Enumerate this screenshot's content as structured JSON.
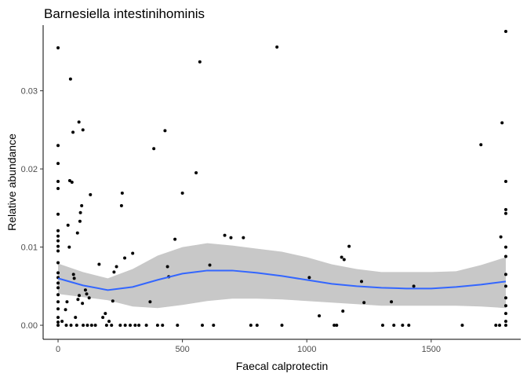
{
  "chart_data": {
    "type": "scatter",
    "title": "Barnesiella intestinihominis",
    "xlabel": "Faecal calprotectin",
    "ylabel": "Relative abundance",
    "xlim": [
      -60,
      1860
    ],
    "ylim": [
      -0.0018,
      0.0384
    ],
    "x_ticks": [
      0,
      500,
      1000,
      1500
    ],
    "x_tick_labels": [
      "0",
      "500",
      "1000",
      "1500"
    ],
    "y_ticks": [
      0,
      0.01,
      0.02,
      0.03
    ],
    "y_tick_labels": [
      "0.00",
      "0.01",
      "0.02",
      "0.03"
    ],
    "grid": false,
    "legend": "none",
    "colors": {
      "points": "#000000",
      "smooth_line": "#3366FF",
      "ribbon": "#C8C8C8"
    },
    "points": [
      [
        0,
        0.0355
      ],
      [
        0,
        0.023
      ],
      [
        0,
        0.0207
      ],
      [
        0,
        0.0184
      ],
      [
        0,
        0.0175
      ],
      [
        0,
        0.0142
      ],
      [
        0,
        0.0121
      ],
      [
        0,
        0.0114
      ],
      [
        0,
        0.0108
      ],
      [
        0,
        0.0101
      ],
      [
        0,
        0.0095
      ],
      [
        0,
        0.008
      ],
      [
        0,
        0.0067
      ],
      [
        0,
        0.0061
      ],
      [
        0,
        0.0054
      ],
      [
        0,
        0.0048
      ],
      [
        0,
        0.0039
      ],
      [
        0,
        0.003
      ],
      [
        0,
        0.0021
      ],
      [
        0,
        0.001
      ],
      [
        0,
        0.0004
      ],
      [
        0,
        0.0
      ],
      [
        16,
        0.0005
      ],
      [
        30,
        0.002
      ],
      [
        33,
        0.0
      ],
      [
        36,
        0.003
      ],
      [
        40,
        0.0128
      ],
      [
        45,
        0.01
      ],
      [
        47,
        0.0185
      ],
      [
        50,
        0.0315
      ],
      [
        52,
        0.0
      ],
      [
        56,
        0.0183
      ],
      [
        60,
        0.0247
      ],
      [
        62,
        0.0065
      ],
      [
        65,
        0.006
      ],
      [
        70,
        0.001
      ],
      [
        75,
        0.0
      ],
      [
        78,
        0.0118
      ],
      [
        80,
        0.0033
      ],
      [
        84,
        0.026
      ],
      [
        85,
        0.0038
      ],
      [
        88,
        0.0133
      ],
      [
        90,
        0.0144
      ],
      [
        95,
        0.0153
      ],
      [
        98,
        0.0028
      ],
      [
        100,
        0.025
      ],
      [
        101,
        0.0
      ],
      [
        110,
        0.0045
      ],
      [
        115,
        0.004
      ],
      [
        118,
        0.0
      ],
      [
        125,
        0.0035
      ],
      [
        130,
        0.0167
      ],
      [
        135,
        0.0
      ],
      [
        150,
        0.0
      ],
      [
        165,
        0.0078
      ],
      [
        180,
        0.001
      ],
      [
        190,
        0.0015
      ],
      [
        195,
        0.0
      ],
      [
        205,
        0.0005
      ],
      [
        215,
        0.0
      ],
      [
        220,
        0.0031
      ],
      [
        225,
        0.0068
      ],
      [
        235,
        0.0075
      ],
      [
        250,
        0.0
      ],
      [
        255,
        0.0153
      ],
      [
        258,
        0.0169
      ],
      [
        268,
        0.0086
      ],
      [
        270,
        0.0
      ],
      [
        290,
        0.0
      ],
      [
        300,
        0.0092
      ],
      [
        310,
        0.0
      ],
      [
        325,
        0.0
      ],
      [
        355,
        0.0
      ],
      [
        370,
        0.003
      ],
      [
        385,
        0.0226
      ],
      [
        400,
        0.0
      ],
      [
        420,
        0.0
      ],
      [
        430,
        0.0249
      ],
      [
        440,
        0.0075
      ],
      [
        445,
        0.0062
      ],
      [
        470,
        0.011
      ],
      [
        480,
        0.0
      ],
      [
        500,
        0.0169
      ],
      [
        555,
        0.0195
      ],
      [
        570,
        0.0337
      ],
      [
        580,
        0.0
      ],
      [
        610,
        0.0077
      ],
      [
        625,
        0.0
      ],
      [
        670,
        0.0115
      ],
      [
        695,
        0.0112
      ],
      [
        745,
        0.0112
      ],
      [
        775,
        0.0
      ],
      [
        800,
        0.0
      ],
      [
        880,
        0.0356
      ],
      [
        900,
        0.0
      ],
      [
        1010,
        0.0061
      ],
      [
        1050,
        0.0012
      ],
      [
        1110,
        0.0
      ],
      [
        1120,
        0.0
      ],
      [
        1140,
        0.0087
      ],
      [
        1145,
        0.0018
      ],
      [
        1150,
        0.0084
      ],
      [
        1170,
        0.0101
      ],
      [
        1220,
        0.0056
      ],
      [
        1230,
        0.0029
      ],
      [
        1305,
        0.0
      ],
      [
        1340,
        0.003
      ],
      [
        1350,
        0.0
      ],
      [
        1385,
        0.0
      ],
      [
        1410,
        0.0
      ],
      [
        1430,
        0.005
      ],
      [
        1625,
        0.0
      ],
      [
        1700,
        0.0231
      ],
      [
        1760,
        0.0
      ],
      [
        1775,
        0.0
      ],
      [
        1780,
        0.0113
      ],
      [
        1785,
        0.0259
      ],
      [
        1800,
        0.0376
      ],
      [
        1800,
        0.0184
      ],
      [
        1800,
        0.0148
      ],
      [
        1800,
        0.0143
      ],
      [
        1800,
        0.01
      ],
      [
        1800,
        0.0088
      ],
      [
        1800,
        0.0065
      ],
      [
        1800,
        0.005
      ],
      [
        1800,
        0.0035
      ],
      [
        1800,
        0.0025
      ],
      [
        1800,
        0.0015
      ],
      [
        1800,
        0.0005
      ],
      [
        1800,
        0.0
      ]
    ],
    "smooth": {
      "x": [
        0,
        100,
        200,
        300,
        400,
        500,
        600,
        700,
        800,
        900,
        1000,
        1100,
        1200,
        1300,
        1400,
        1500,
        1600,
        1700,
        1800
      ],
      "y": [
        0.006,
        0.0051,
        0.0045,
        0.0049,
        0.0058,
        0.0066,
        0.007,
        0.007,
        0.0067,
        0.0063,
        0.0058,
        0.0053,
        0.005,
        0.0048,
        0.0047,
        0.0047,
        0.0049,
        0.0052,
        0.0056
      ],
      "lower": [
        0.004,
        0.0036,
        0.0032,
        0.0024,
        0.0022,
        0.0026,
        0.0031,
        0.0034,
        0.0034,
        0.0033,
        0.0031,
        0.0029,
        0.0027,
        0.0025,
        0.0025,
        0.0025,
        0.0025,
        0.0024,
        0.0022
      ],
      "upper": [
        0.0079,
        0.0068,
        0.006,
        0.0072,
        0.0089,
        0.01,
        0.0105,
        0.0102,
        0.0098,
        0.0094,
        0.0087,
        0.0078,
        0.0072,
        0.0068,
        0.0068,
        0.0068,
        0.0069,
        0.0077,
        0.0087
      ]
    }
  }
}
